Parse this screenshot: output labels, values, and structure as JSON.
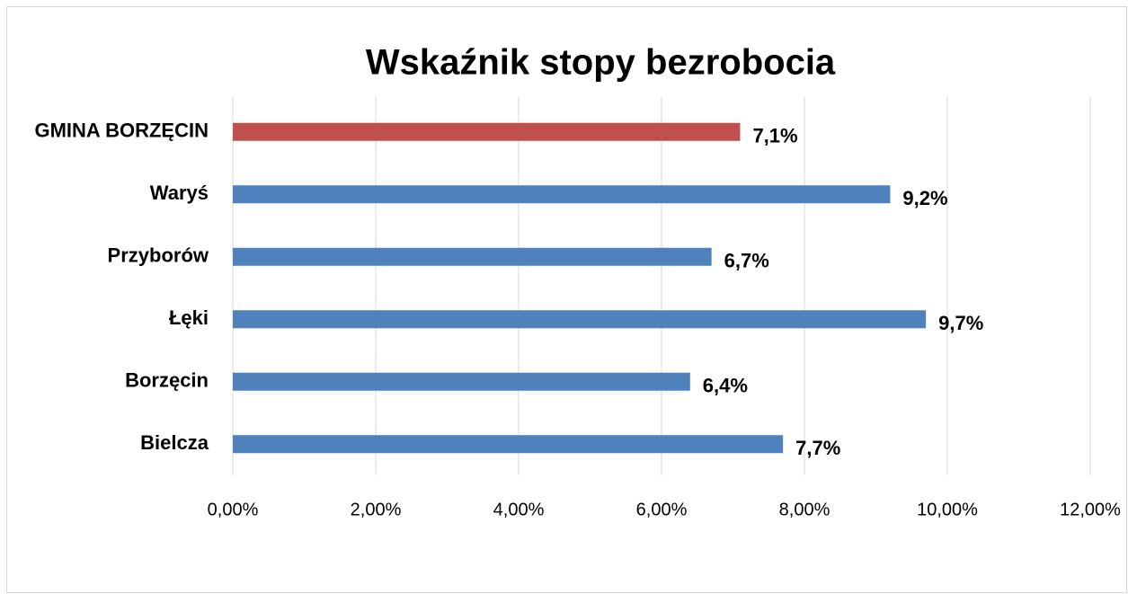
{
  "chart_data": {
    "type": "barh",
    "title": "Wskaźnik stopy bezrobocia",
    "categories": [
      "GMINA BORZĘCIN",
      "Waryś",
      "Przyborów",
      "Łęki",
      "Borzęcin",
      "Bielcza"
    ],
    "values": [
      7.1,
      9.2,
      6.7,
      9.7,
      6.4,
      7.7
    ],
    "value_labels": [
      "7,1%",
      "9,2%",
      "6,7%",
      "9,7%",
      "6,4%",
      "7,7%"
    ],
    "colors": [
      "#c0504d",
      "#4f81bd",
      "#4f81bd",
      "#4f81bd",
      "#4f81bd",
      "#4f81bd"
    ],
    "xlim": [
      0,
      12
    ],
    "xticks": [
      {
        "value": 0,
        "label": "0,00%"
      },
      {
        "value": 2,
        "label": "2,00%"
      },
      {
        "value": 4,
        "label": "4,00%"
      },
      {
        "value": 6,
        "label": "6,00%"
      },
      {
        "value": 8,
        "label": "8,00%"
      },
      {
        "value": 10,
        "label": "10,00%"
      },
      {
        "value": 12,
        "label": "12,00%"
      }
    ],
    "grid": true
  }
}
